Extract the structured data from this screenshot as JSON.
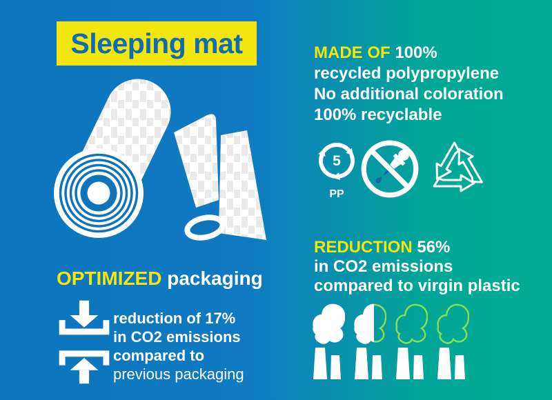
{
  "title": "Sleeping mat",
  "made_of": {
    "highlight": "MADE OF",
    "value": "100%",
    "line2": "recycled polypropylene",
    "line3": "No additional coloration",
    "line4": "100% recyclable"
  },
  "material_icons": {
    "recycling_code_number": "5",
    "recycling_code_label": "PP",
    "icon_names": [
      "recycling-code-5-pp-icon",
      "no-coloration-dropper-icon",
      "recyclable-arrows-icon"
    ]
  },
  "reduction_co2": {
    "highlight": "REDUCTION",
    "value": "56%",
    "line2": "in CO2 emissions",
    "line3": "compared to virgin plastic"
  },
  "optimized": {
    "highlight": "OPTIMIZED",
    "rest": "packaging"
  },
  "packaging_reduction": {
    "line1": "reduction of 17%",
    "line2": "in CO2 emissions",
    "line3": "compared to",
    "line4": "previous packaging"
  },
  "factories": [
    "solid",
    "half",
    "outline",
    "outline"
  ],
  "colors": {
    "accent_yellow": "#f2e60e",
    "title_blue": "#0d6cb2",
    "background_blue": "#0b74bd",
    "background_teal": "#00ac93",
    "smoke_outline_green": "#8edc50",
    "dropper_blue": "#1565a8",
    "white": "#ffffff"
  }
}
